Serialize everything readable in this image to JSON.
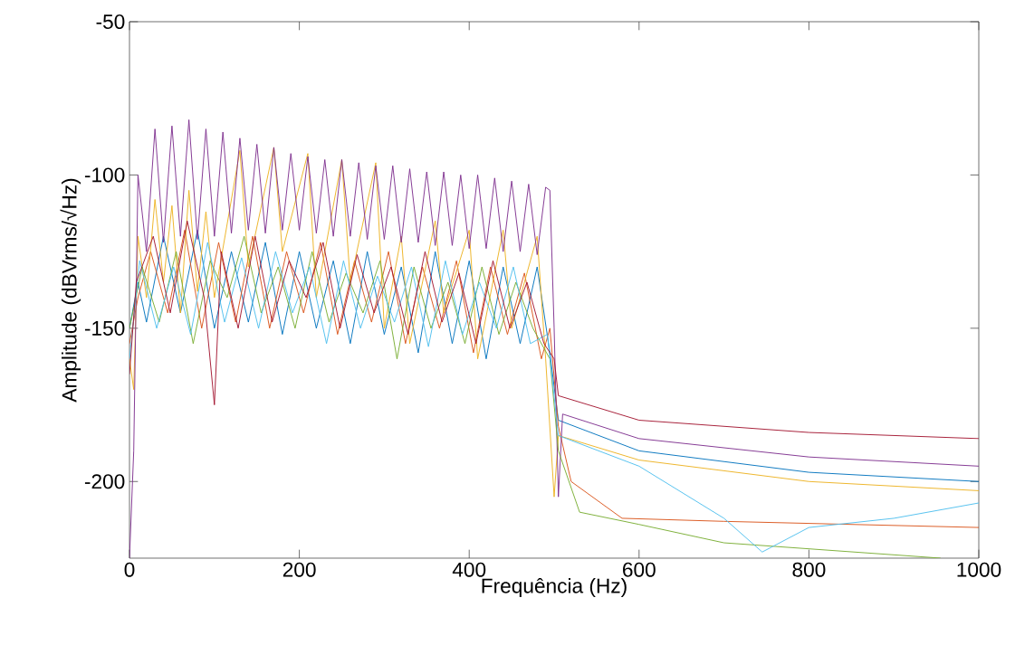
{
  "chart_data": {
    "type": "line",
    "xlabel": "Frequência (Hz)",
    "ylabel": "Amplitude (dBVrms/√Hz)",
    "xlim": [
      0,
      1000
    ],
    "ylim": [
      -225,
      -50
    ],
    "xticks": [
      0,
      200,
      400,
      600,
      800,
      1000
    ],
    "yticks": [
      -200,
      -150,
      -100,
      -50
    ],
    "grid": false,
    "marker": "none",
    "line_style": "solid",
    "series": [
      {
        "color": "#0072bd",
        "x": [
          0,
          10,
          20,
          40,
          60,
          80,
          100,
          120,
          140,
          160,
          180,
          200,
          220,
          240,
          260,
          280,
          300,
          320,
          340,
          360,
          380,
          400,
          420,
          440,
          460,
          480,
          495,
          505,
          600,
          800,
          1000
        ],
        "values": [
          -150,
          -135,
          -148,
          -120,
          -145,
          -118,
          -150,
          -125,
          -148,
          -122,
          -152,
          -125,
          -150,
          -128,
          -155,
          -125,
          -152,
          -130,
          -158,
          -125,
          -155,
          -128,
          -160,
          -130,
          -155,
          -130,
          -158,
          -180,
          -190,
          -197,
          -200
        ]
      },
      {
        "color": "#d95319",
        "x": [
          0,
          10,
          25,
          45,
          65,
          85,
          105,
          125,
          145,
          165,
          185,
          205,
          225,
          245,
          265,
          285,
          305,
          325,
          345,
          365,
          385,
          405,
          425,
          445,
          465,
          485,
          495,
          505,
          520,
          580,
          700,
          1000
        ],
        "values": [
          -155,
          -140,
          -125,
          -145,
          -118,
          -150,
          -122,
          -148,
          -120,
          -150,
          -125,
          -145,
          -122,
          -152,
          -128,
          -148,
          -125,
          -155,
          -130,
          -150,
          -128,
          -158,
          -130,
          -152,
          -132,
          -160,
          -150,
          -182,
          -200,
          -212,
          -213,
          -215
        ]
      },
      {
        "color": "#edb120",
        "x": [
          0,
          5,
          10,
          20,
          30,
          40,
          50,
          60,
          70,
          80,
          90,
          100,
          130,
          140,
          170,
          180,
          210,
          220,
          250,
          260,
          290,
          300,
          320,
          330,
          360,
          370,
          400,
          410,
          440,
          450,
          480,
          490,
          500,
          505,
          600,
          800,
          1000
        ],
        "values": [
          -160,
          -170,
          -120,
          -140,
          -108,
          -135,
          -110,
          -145,
          -105,
          -138,
          -112,
          -140,
          -92,
          -130,
          -91,
          -125,
          -93,
          -140,
          -95,
          -135,
          -96,
          -150,
          -120,
          -155,
          -115,
          -145,
          -118,
          -160,
          -118,
          -150,
          -120,
          -160,
          -205,
          -185,
          -193,
          -200,
          -203
        ]
      },
      {
        "color": "#7e2f8e",
        "x": [
          0,
          5,
          10,
          20,
          30,
          40,
          50,
          60,
          70,
          80,
          90,
          100,
          110,
          120,
          130,
          140,
          150,
          160,
          170,
          180,
          190,
          200,
          210,
          220,
          230,
          240,
          250,
          260,
          270,
          280,
          290,
          300,
          310,
          320,
          330,
          340,
          350,
          360,
          370,
          380,
          390,
          400,
          410,
          420,
          430,
          440,
          450,
          460,
          470,
          480,
          490,
          495,
          500,
          505,
          510,
          600,
          800,
          1000
        ],
        "values": [
          -225,
          -190,
          -100,
          -125,
          -85,
          -122,
          -84,
          -120,
          -82,
          -121,
          -85,
          -120,
          -86,
          -119,
          -88,
          -118,
          -90,
          -119,
          -91,
          -118,
          -93,
          -118,
          -94,
          -119,
          -95,
          -120,
          -95,
          -120,
          -96,
          -121,
          -97,
          -121,
          -97,
          -122,
          -98,
          -122,
          -99,
          -123,
          -99,
          -123,
          -100,
          -124,
          -100,
          -124,
          -101,
          -125,
          -102,
          -125,
          -103,
          -126,
          -104,
          -105,
          -150,
          -205,
          -178,
          -186,
          -192,
          -195
        ]
      },
      {
        "color": "#77ac30",
        "x": [
          0,
          15,
          35,
          55,
          75,
          95,
          115,
          135,
          155,
          175,
          195,
          215,
          235,
          255,
          275,
          295,
          315,
          335,
          355,
          375,
          395,
          415,
          435,
          455,
          475,
          495,
          505,
          530,
          600,
          700,
          955
        ],
        "values": [
          -150,
          -130,
          -148,
          -125,
          -155,
          -128,
          -140,
          -120,
          -145,
          -130,
          -150,
          -125,
          -148,
          -132,
          -145,
          -128,
          -160,
          -130,
          -150,
          -135,
          -155,
          -130,
          -152,
          -135,
          -150,
          -160,
          -190,
          -210,
          -214,
          -220,
          -225
        ]
      },
      {
        "color": "#4dbeee",
        "x": [
          0,
          12,
          32,
          52,
          72,
          92,
          112,
          132,
          152,
          172,
          192,
          212,
          232,
          252,
          272,
          292,
          312,
          332,
          352,
          372,
          392,
          412,
          432,
          452,
          472,
          492,
          505,
          600,
          700,
          745,
          800,
          900,
          1000
        ],
        "values": [
          -160,
          -128,
          -150,
          -130,
          -152,
          -122,
          -148,
          -127,
          -150,
          -125,
          -145,
          -130,
          -155,
          -128,
          -150,
          -133,
          -148,
          -130,
          -156,
          -128,
          -152,
          -135,
          -150,
          -130,
          -155,
          -152,
          -185,
          -195,
          -212,
          -223,
          -215,
          -212,
          -207
        ]
      },
      {
        "color": "#a2142f",
        "x": [
          0,
          8,
          28,
          48,
          68,
          88,
          100,
          108,
          128,
          148,
          168,
          188,
          208,
          228,
          248,
          268,
          288,
          308,
          328,
          348,
          368,
          388,
          408,
          428,
          448,
          468,
          488,
          500,
          505,
          600,
          800,
          1000
        ],
        "values": [
          -165,
          -135,
          -120,
          -145,
          -115,
          -140,
          -175,
          -125,
          -150,
          -120,
          -148,
          -128,
          -140,
          -122,
          -150,
          -126,
          -145,
          -130,
          -152,
          -125,
          -148,
          -132,
          -155,
          -128,
          -150,
          -135,
          -155,
          -160,
          -172,
          -180,
          -184,
          -186
        ]
      }
    ]
  }
}
